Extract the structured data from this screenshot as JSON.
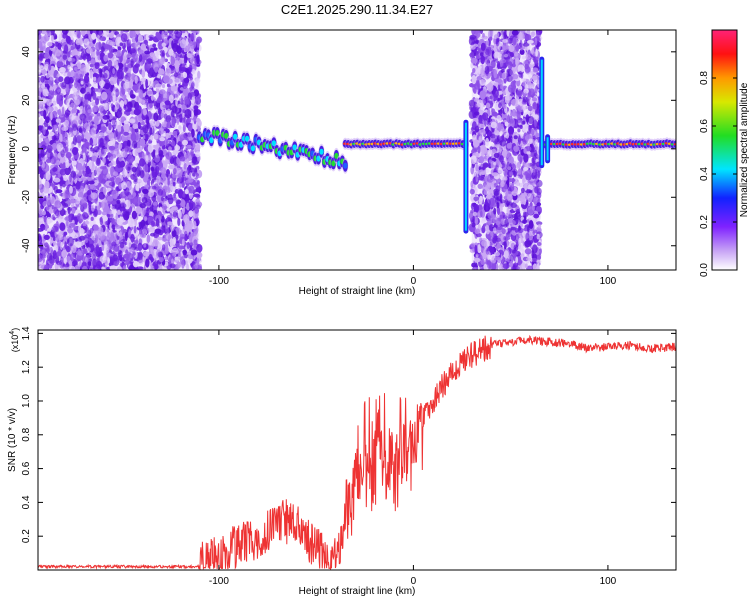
{
  "title": "C2E1.2025.290.11.34.E27",
  "chart_data": [
    {
      "type": "heatmap",
      "title": "C2E1.2025.290.11.34.E27",
      "xlabel": "Height of straight line (km)",
      "ylabel": "Frequency (Hz)",
      "xlim": [
        -193,
        135
      ],
      "ylim": [
        -50,
        49
      ],
      "xticks": [
        -100,
        0,
        100
      ],
      "yticks": [
        -40,
        -20,
        0,
        20,
        40
      ],
      "colorbar": {
        "label": "Normalized spectral amplitude",
        "range": [
          0,
          1
        ],
        "ticks": [
          0.0,
          0.2,
          0.4,
          0.6,
          0.8
        ],
        "tick_labels": [
          "0.0",
          "0.2",
          "0.4",
          "0.6",
          "0.8"
        ]
      },
      "regions": [
        {
          "name": "noise",
          "x": [
            -193,
            -110
          ]
        },
        {
          "name": "drifting-signal",
          "x": [
            -110,
            -35
          ],
          "freq_start": 6,
          "freq_end": -5
        },
        {
          "name": "steady-signal",
          "x": [
            -35,
            27
          ],
          "freq": 2
        },
        {
          "name": "noise",
          "x": [
            30,
            65
          ]
        },
        {
          "name": "steady-signal",
          "x": [
            68,
            135
          ],
          "freq": 2
        }
      ]
    },
    {
      "type": "line",
      "xlabel": "Height of straight line (km)",
      "ylabel": "SNR (10 * v/v)",
      "y_multiplier": "(x10",
      "y_exponent": "4",
      "xlim": [
        -193,
        135
      ],
      "ylim": [
        0,
        1.42
      ],
      "xticks": [
        -100,
        0,
        100
      ],
      "yticks": [
        0.2,
        0.4,
        0.6,
        0.8,
        1.0,
        1.2,
        1.4
      ],
      "series": [
        {
          "name": "SNR",
          "color": "#ee3333",
          "x": [
            -193,
            -150,
            -110,
            -100,
            -90,
            -80,
            -70,
            -60,
            -55,
            -50,
            -45,
            -40,
            -35,
            -30,
            -25,
            -20,
            -15,
            -10,
            -5,
            0,
            10,
            20,
            30,
            40,
            50,
            60,
            70,
            80,
            90,
            100,
            110,
            120,
            135
          ],
          "values": [
            0.02,
            0.02,
            0.02,
            0.07,
            0.14,
            0.2,
            0.3,
            0.28,
            0.18,
            0.12,
            0.06,
            0.05,
            0.3,
            0.5,
            0.65,
            0.7,
            0.72,
            0.68,
            0.72,
            0.8,
            1.0,
            1.18,
            1.27,
            1.33,
            1.35,
            1.36,
            1.35,
            1.34,
            1.31,
            1.32,
            1.33,
            1.31,
            1.32
          ]
        }
      ]
    }
  ]
}
